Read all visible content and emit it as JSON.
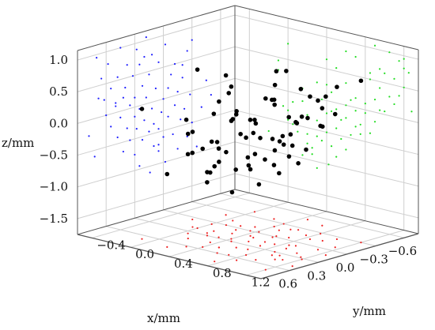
{
  "chart_data": {
    "type": "scatter",
    "subtype": "3d-scatter-with-wall-projections",
    "title": "",
    "xlabel": "x/mm",
    "ylabel": "y/mm",
    "zlabel": "z/mm",
    "xlim": [
      -0.75,
      0.9
    ],
    "ylim": [
      -0.55,
      1.35
    ],
    "zlim": [
      -1.75,
      1.15
    ],
    "xticks": [
      "−0.6",
      "−0.3",
      "0.0",
      "0.3",
      "0.6"
    ],
    "yticks": [
      "−0.4",
      "0.0",
      "0.4",
      "0.8",
      "1.2"
    ],
    "zticks": [
      "1.0",
      "0.5",
      "0.0",
      "−0.5",
      "−1.0",
      "−1.5"
    ],
    "grid": true,
    "colors": {
      "points": "#000000",
      "xz_projection": "#1f1fff",
      "yz_projection": "#22dd22",
      "xy_projection": "#ee2222",
      "grid": "#cfcfcf",
      "frame": "#555555"
    },
    "series": [
      {
        "values": [
          [
            0.14,
            0.3,
            -1.1
          ],
          [
            -0.02,
            0.42,
            -1.0
          ],
          [
            0.25,
            0.15,
            -0.95
          ],
          [
            -0.15,
            0.5,
            -0.85
          ],
          [
            0.05,
            0.25,
            -0.8
          ],
          [
            0.3,
            0.2,
            -0.75
          ],
          [
            -0.25,
            0.6,
            -0.7
          ],
          [
            0.1,
            0.45,
            -0.7
          ],
          [
            0.42,
            0.35,
            -0.65
          ],
          [
            0.0,
            0.1,
            -0.6
          ],
          [
            -0.1,
            0.3,
            -0.6
          ],
          [
            0.22,
            0.55,
            -0.55
          ],
          [
            0.35,
            0.05,
            -0.5
          ],
          [
            -0.3,
            0.4,
            -0.5
          ],
          [
            0.15,
            0.65,
            -0.45
          ],
          [
            0.05,
            0.0,
            -0.45
          ],
          [
            0.48,
            0.5,
            -0.4
          ],
          [
            -0.18,
            0.75,
            -0.4
          ],
          [
            0.28,
            0.3,
            -0.35
          ],
          [
            0.1,
            0.85,
            -0.35
          ],
          [
            -0.05,
            0.2,
            -0.3
          ],
          [
            0.38,
            0.7,
            -0.3
          ],
          [
            0.2,
            -0.05,
            -0.25
          ],
          [
            -0.22,
            0.55,
            -0.25
          ],
          [
            0.55,
            0.4,
            -0.2
          ],
          [
            0.02,
            0.6,
            -0.2
          ],
          [
            0.3,
            0.9,
            -0.15
          ],
          [
            -0.12,
            0.05,
            -0.15
          ],
          [
            0.45,
            0.15,
            -0.1
          ],
          [
            0.12,
            0.5,
            -0.1
          ],
          [
            -0.28,
            0.8,
            -0.05
          ],
          [
            0.25,
            0.7,
            -0.05
          ],
          [
            0.6,
            0.6,
            0.0
          ],
          [
            0.0,
            0.35,
            0.0
          ],
          [
            0.35,
            1.0,
            0.05
          ],
          [
            -0.15,
            0.95,
            0.05
          ],
          [
            0.18,
            0.15,
            0.1
          ],
          [
            0.5,
            0.8,
            0.1
          ],
          [
            -0.05,
            0.7,
            0.15
          ],
          [
            0.3,
            0.45,
            0.15
          ],
          [
            0.42,
            1.1,
            0.2
          ],
          [
            0.08,
            0.9,
            0.2
          ],
          [
            -0.2,
            0.4,
            0.25
          ],
          [
            0.62,
            0.3,
            0.25
          ],
          [
            0.22,
            1.05,
            0.3
          ],
          [
            0.4,
            0.6,
            0.35
          ],
          [
            -0.08,
            1.15,
            0.35
          ],
          [
            0.55,
            0.95,
            0.4
          ],
          [
            0.15,
            0.75,
            0.45
          ],
          [
            0.32,
            1.2,
            0.5
          ],
          [
            -0.12,
            0.85,
            0.5
          ],
          [
            0.48,
            0.5,
            0.55
          ],
          [
            0.05,
            1.1,
            0.6
          ],
          [
            0.65,
            0.85,
            0.6
          ],
          [
            0.25,
            0.4,
            0.65
          ],
          [
            -0.25,
            1.0,
            0.65
          ],
          [
            0.38,
            0.95,
            0.7
          ],
          [
            0.12,
            1.25,
            0.75
          ],
          [
            0.58,
            0.7,
            0.8
          ],
          [
            -0.02,
            0.6,
            0.85
          ],
          [
            0.28,
            1.15,
            0.9
          ],
          [
            0.45,
            1.05,
            1.0
          ],
          [
            0.18,
            0.9,
            1.05
          ],
          [
            0.7,
            1.2,
            0.95
          ],
          [
            -0.35,
            0.25,
            -0.9
          ],
          [
            -0.4,
            0.0,
            -0.3
          ],
          [
            0.72,
            0.2,
            -0.6
          ],
          [
            -0.45,
            0.65,
            0.1
          ],
          [
            0.68,
            -0.1,
            0.3
          ],
          [
            -0.3,
            1.2,
            0.8
          ],
          [
            0.05,
            -0.2,
            -0.7
          ],
          [
            0.5,
            1.28,
            0.15
          ],
          [
            -0.5,
            0.45,
            -0.15
          ],
          [
            0.78,
            0.75,
            -0.25
          ],
          [
            -0.2,
            -0.1,
            0.45
          ],
          [
            0.2,
            0.0,
            0.75
          ]
        ]
      }
    ]
  }
}
